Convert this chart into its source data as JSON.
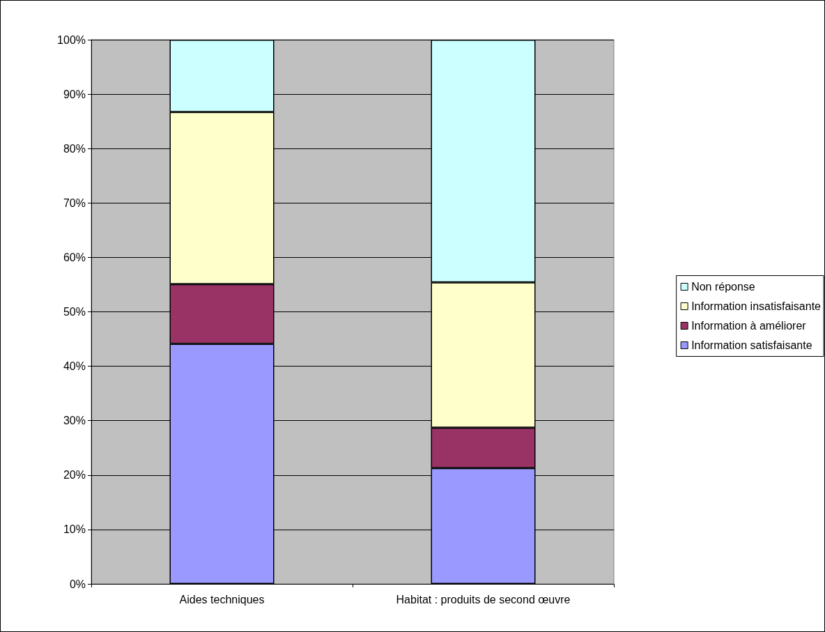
{
  "chart_data": {
    "type": "bar",
    "stacked": true,
    "categories": [
      "Aides techniques",
      "Habitat : produits de second œuvre"
    ],
    "series": [
      {
        "name": "Information satisfaisante",
        "color": "#9999ff",
        "values": [
          44.1,
          21.3
        ]
      },
      {
        "name": "Information à améliorer",
        "color": "#993366",
        "values": [
          11.0,
          7.4
        ]
      },
      {
        "name": "Information insatisfaisante",
        "color": "#ffffcc",
        "values": [
          31.6,
          26.7
        ]
      },
      {
        "name": "Non réponse",
        "color": "#ccffff",
        "values": [
          13.3,
          44.6
        ]
      }
    ],
    "ylim": [
      0,
      100
    ],
    "yticks": [
      {
        "value": 0,
        "label": "0%"
      },
      {
        "value": 10,
        "label": "10%"
      },
      {
        "value": 20,
        "label": "20%"
      },
      {
        "value": 30,
        "label": "30%"
      },
      {
        "value": 40,
        "label": "40%"
      },
      {
        "value": 50,
        "label": "50%"
      },
      {
        "value": 60,
        "label": "60%"
      },
      {
        "value": 70,
        "label": "70%"
      },
      {
        "value": 80,
        "label": "80%"
      },
      {
        "value": 90,
        "label": "90%"
      },
      {
        "value": 100,
        "label": "100%"
      }
    ],
    "grid": "y",
    "legend": "right"
  }
}
